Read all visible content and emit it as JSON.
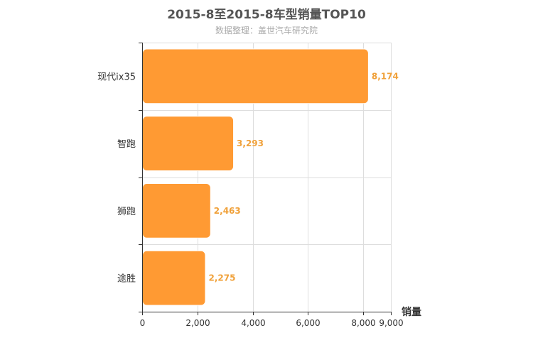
{
  "chart_data": {
    "type": "bar",
    "orientation": "horizontal",
    "title": "2015-8至2015-8车型销量TOP10",
    "subtitle": "数据整理：盖世汽车研究院",
    "categories": [
      "现代ix35",
      "智跑",
      "狮跑",
      "途胜"
    ],
    "values": [
      8174,
      3293,
      2463,
      2275
    ],
    "value_labels": [
      "8,174",
      "3,293",
      "2,463",
      "2,275"
    ],
    "xlabel": "销量",
    "ylabel": "",
    "xlim": [
      0,
      9000
    ],
    "x_ticks": [
      0,
      2000,
      4000,
      6000,
      8000,
      9000
    ],
    "x_tick_labels": [
      "0",
      "2,000",
      "4,000",
      "6,000",
      "8,000",
      "9,000"
    ],
    "grid": true,
    "colors": {
      "bar": "#ff9a33",
      "value_label": "#f0a13a",
      "grid": "#dddddd",
      "axis": "#333333"
    }
  }
}
